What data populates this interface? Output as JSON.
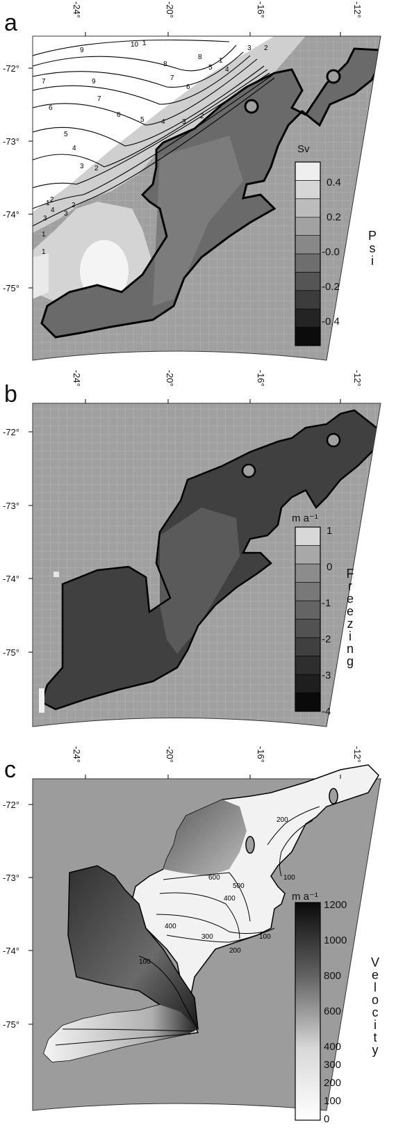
{
  "chart_data": [
    {
      "type": "heatmap",
      "panel_label": "a",
      "lon_ticks": [
        "-24°",
        "-20°",
        "-16°",
        "-12°"
      ],
      "lat_ticks": [
        "-72°",
        "-73°",
        "-74°",
        "-75°"
      ],
      "lon_values": [
        -24,
        -20,
        -16,
        -12
      ],
      "lat_values": [
        -72,
        -73,
        -74,
        -75
      ],
      "colorbar": {
        "unit": "Sv",
        "label": "Psi",
        "tick_labels": [
          "0.4",
          "0.2",
          "-0.0",
          "-0.2",
          "-0.4"
        ],
        "range": [
          -0.5,
          0.5
        ],
        "colors": [
          "#0c0c0c",
          "#242424",
          "#3c3c3c",
          "#555555",
          "#6e6e6e",
          "#888888",
          "#a2a2a2",
          "#bcbcbc",
          "#d6d6d6",
          "#efefef"
        ]
      },
      "contour_labels": [
        "10",
        "9",
        "8",
        "7",
        "6",
        "5",
        "4",
        "3",
        "2",
        "1",
        "9",
        "8",
        "7",
        "6",
        "5",
        "4",
        "3",
        "2",
        "1",
        "7",
        "6",
        "5",
        "4",
        "3",
        "2",
        "1",
        "3",
        "2",
        "1",
        "4",
        "3",
        "2",
        "1"
      ]
    },
    {
      "type": "heatmap",
      "panel_label": "b",
      "lon_ticks": [
        "-24°",
        "-20°",
        "-16°",
        "-12°"
      ],
      "lat_ticks": [
        "-72°",
        "-73°",
        "-74°",
        "-75°"
      ],
      "lon_values": [
        -24,
        -20,
        -16,
        -12
      ],
      "lat_values": [
        -72,
        -73,
        -74,
        -75
      ],
      "colorbar": {
        "unit": "m a⁻¹",
        "label": "Freezing",
        "tick_labels": [
          "1",
          "0",
          "-1",
          "-2",
          "-3",
          "-4"
        ],
        "range": [
          -4,
          1
        ],
        "colors": [
          "#0a0a0a",
          "#1e1e1e",
          "#2e2e2e",
          "#404040",
          "#525252",
          "#646464",
          "#787878",
          "#8c8c8c",
          "#a8a8a8",
          "#d8d8d8"
        ]
      }
    },
    {
      "type": "heatmap",
      "panel_label": "c",
      "lon_ticks": [
        "-24°",
        "-20°",
        "-16°",
        "-12°"
      ],
      "lat_ticks": [
        "-72°",
        "-73°",
        "-74°",
        "-75°"
      ],
      "lon_values": [
        -24,
        -20,
        -16,
        -12
      ],
      "lat_values": [
        -72,
        -73,
        -74,
        -75
      ],
      "colorbar": {
        "unit": "m a⁻¹",
        "label": "Velocity",
        "tick_labels": [
          "1200",
          "1000",
          "800",
          "600",
          "400",
          "300",
          "200",
          "100",
          "0"
        ],
        "range": [
          0,
          1200
        ]
      },
      "contour_labels": [
        "200",
        "100",
        "600",
        "400",
        "500",
        "400",
        "300",
        "200",
        "100",
        "100"
      ]
    }
  ]
}
